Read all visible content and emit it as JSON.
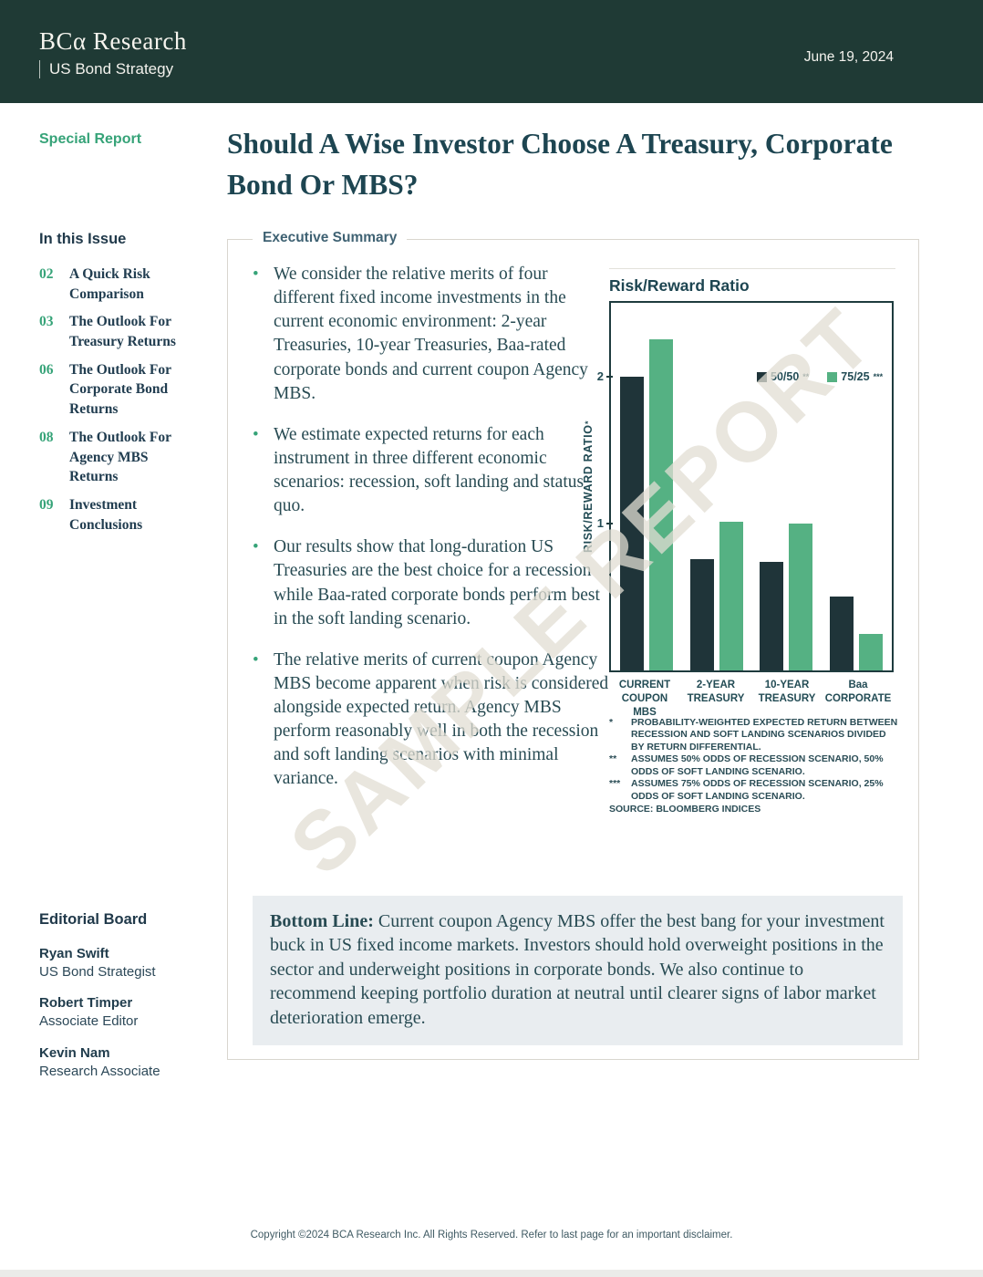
{
  "header": {
    "brand": "BCα Research",
    "subtitle": "US Bond Strategy",
    "date": "June 19, 2024"
  },
  "sidebar": {
    "tag": "Special Report",
    "toc_title": "In this Issue",
    "toc": [
      {
        "num": "02",
        "label": "A Quick Risk Comparison"
      },
      {
        "num": "03",
        "label": "The Outlook For Treasury Returns"
      },
      {
        "num": "06",
        "label": "The Outlook For Corporate Bond Returns"
      },
      {
        "num": "08",
        "label": "The Outlook For Agency MBS Returns"
      },
      {
        "num": "09",
        "label": "Investment Conclusions"
      }
    ],
    "editorial_title": "Editorial Board",
    "editors": [
      {
        "name": "Ryan Swift",
        "role": "US Bond Strategist"
      },
      {
        "name": "Robert Timper",
        "role": "Associate Editor"
      },
      {
        "name": "Kevin Nam",
        "role": "Research Associate"
      }
    ]
  },
  "article": {
    "title": "Should A Wise Investor Choose A Treasury, Corporate Bond Or MBS?",
    "section_label": "Executive Summary",
    "bullets": [
      "We consider the relative merits of four different fixed income investments in the current economic environment: 2-year Treasuries, 10-year Treasuries, Baa-rated corporate bonds and current coupon Agency MBS.",
      "We estimate expected returns for each instrument in three different economic scenarios: recession, soft landing and status quo.",
      "Our results show that long-duration US Treasuries are the best choice for a recession while Baa-rated corporate bonds perform best in the soft landing scenario.",
      "The relative merits of current coupon Agency MBS become apparent when risk is considered alongside expected return. Agency MBS perform reasonably well in both the recession and soft landing scenarios with minimal variance."
    ],
    "bottom_line_label": "Bottom Line:",
    "bottom_line_text": " Current coupon Agency MBS offer the best bang for your investment buck in US fixed income markets. Investors should hold overweight positions in the sector and underweight positions in corporate bonds. We also continue to recommend keeping portfolio duration at neutral until clearer signs of labor market deterioration emerge."
  },
  "chart_data": {
    "type": "bar",
    "title": "Risk/Reward Ratio",
    "ylabel": "RISK/REWARD RATIO",
    "ylabel_sup": "*",
    "categories": [
      "CURRENT COUPON MBS",
      "2-YEAR TREASURY",
      "10-YEAR TREASURY",
      "Baa CORPORATE"
    ],
    "series": [
      {
        "name": "50/50",
        "sup": "**",
        "color": "#1f3439",
        "values": [
          2.0,
          0.76,
          0.74,
          0.5
        ]
      },
      {
        "name": "75/25",
        "sup": "***",
        "color": "#55b183",
        "values": [
          2.25,
          1.01,
          1.0,
          0.25
        ]
      }
    ],
    "ylim": [
      0,
      2.5
    ],
    "yticks": [
      1,
      2
    ],
    "grid": false,
    "legend_position": "top-right-inside",
    "footnotes": [
      {
        "marker": "*",
        "text": "PROBABILITY-WEIGHTED EXPECTED RETURN BETWEEN RECESSION AND SOFT LANDING SCENARIOS DIVIDED BY RETURN DIFFERENTIAL."
      },
      {
        "marker": "**",
        "text": "ASSUMES 50% ODDS OF RECESSION SCENARIO, 50% ODDS OF SOFT LANDING SCENARIO."
      },
      {
        "marker": "***",
        "text": "ASSUMES 75% ODDS OF RECESSION SCENARIO, 25% ODDS OF SOFT LANDING SCENARIO."
      }
    ],
    "source": "SOURCE: BLOOMBERG INDICES"
  },
  "watermark": "SAMPLE REPORT",
  "footer": {
    "copyright": "Copyright ©2024 BCA Research Inc. All Rights Reserved. Refer to last page for an important disclaimer."
  },
  "colors": {
    "header_bg": "#1f3a35",
    "accent_green": "#36a378",
    "chart_dark": "#1f3439",
    "chart_green": "#55b183",
    "text_dark": "#284b53",
    "bottom_line_bg": "#e9edf0"
  }
}
